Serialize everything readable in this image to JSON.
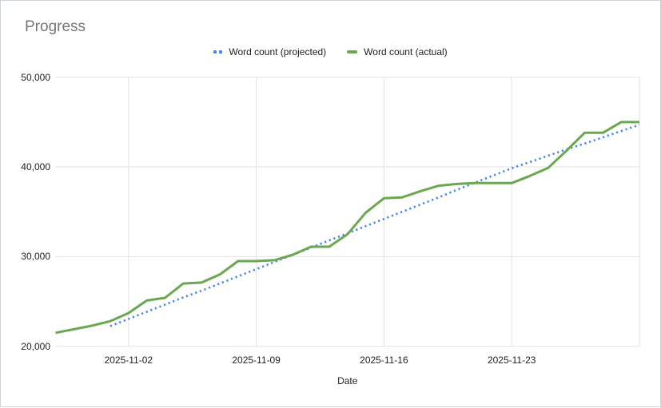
{
  "chart": {
    "title": "Progress",
    "legend_position": "top-center",
    "grid": true,
    "colors": {
      "projected": "#4285f4",
      "actual": "#6aa84f",
      "gridline": "#e2e2e2",
      "title_text": "#767676",
      "axis_text": "#1f1f1f"
    }
  },
  "chart_data": {
    "type": "line",
    "title": "Progress",
    "xlabel": "Date",
    "ylabel": "",
    "ylim": [
      20000,
      50000
    ],
    "legend_position": "top",
    "grid": true,
    "y_ticks": [
      {
        "value": 20000,
        "label": "20,000"
      },
      {
        "value": 30000,
        "label": "30,000"
      },
      {
        "value": 40000,
        "label": "40,000"
      },
      {
        "value": 50000,
        "label": "50,000"
      }
    ],
    "x": [
      "2025-10-29",
      "2025-10-30",
      "2025-10-31",
      "2025-11-01",
      "2025-11-02",
      "2025-11-03",
      "2025-11-04",
      "2025-11-05",
      "2025-11-06",
      "2025-11-07",
      "2025-11-08",
      "2025-11-09",
      "2025-11-10",
      "2025-11-11",
      "2025-11-12",
      "2025-11-13",
      "2025-11-14",
      "2025-11-15",
      "2025-11-16",
      "2025-11-17",
      "2025-11-18",
      "2025-11-19",
      "2025-11-20",
      "2025-11-21",
      "2025-11-22",
      "2025-11-23",
      "2025-11-24",
      "2025-11-25",
      "2025-11-26",
      "2025-11-27",
      "2025-11-28",
      "2025-11-29",
      "2025-11-30"
    ],
    "x_tick_labels": [
      "2025-11-02",
      "2025-11-09",
      "2025-11-16",
      "2025-11-23"
    ],
    "series": [
      {
        "name": "Word count (projected)",
        "color": "#4285f4",
        "style": "dotted",
        "values": [
          null,
          null,
          null,
          22250,
          23050,
          23850,
          24650,
          25450,
          26200,
          27000,
          27800,
          28600,
          29400,
          30200,
          31000,
          31800,
          32600,
          33400,
          34200,
          35000,
          35800,
          36600,
          37450,
          38250,
          39050,
          39850,
          40550,
          41250,
          41950,
          42600,
          43300,
          44000,
          44700
        ]
      },
      {
        "name": "Word count (actual)",
        "color": "#6aa84f",
        "style": "solid",
        "values": [
          21500,
          21900,
          22300,
          22800,
          23700,
          25100,
          25400,
          27000,
          27100,
          28000,
          29500,
          29500,
          29600,
          30200,
          31100,
          31100,
          32500,
          34900,
          36500,
          36600,
          37300,
          37900,
          38100,
          38200,
          38200,
          38200,
          39000,
          39900,
          41800,
          43800,
          43800,
          45000,
          45000
        ]
      }
    ]
  }
}
